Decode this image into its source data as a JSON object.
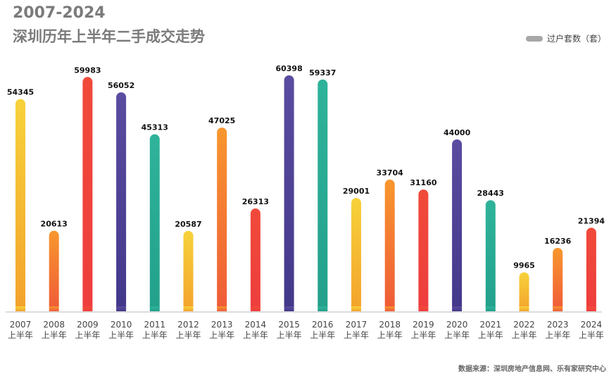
{
  "chart_data": {
    "type": "bar",
    "title": "2007-2024",
    "subtitle": "深圳历年上半年二手成交走势",
    "categories": [
      "2007",
      "2008",
      "2009",
      "2010",
      "2011",
      "2012",
      "2013",
      "2014",
      "2015",
      "2016",
      "2017",
      "2018",
      "2019",
      "2020",
      "2021",
      "2022",
      "2023",
      "2024"
    ],
    "category_suffix": "上半年",
    "series": [
      {
        "name": "过户套数（套）",
        "values": [
          54345,
          20613,
          59983,
          56052,
          45313,
          20587,
          47025,
          26313,
          60398,
          59337,
          29001,
          33704,
          31160,
          44000,
          28443,
          9965,
          16236,
          21394
        ]
      }
    ],
    "ylim": [
      0,
      60398
    ],
    "grid": false,
    "legend": "top-right",
    "legend_color": "#a7a7a7",
    "bar_colors": [
      [
        "#f7d23a",
        "#f3a22c"
      ],
      [
        "#f8972e",
        "#ef5a38"
      ],
      [
        "#f04a3a",
        "#ee3d3d"
      ],
      [
        "#5a4ca0",
        "#42388a"
      ],
      [
        "#2fb39a",
        "#22a08b"
      ]
    ]
  },
  "source": "数据来源：深圳房地产信息网、乐有家研究中心"
}
